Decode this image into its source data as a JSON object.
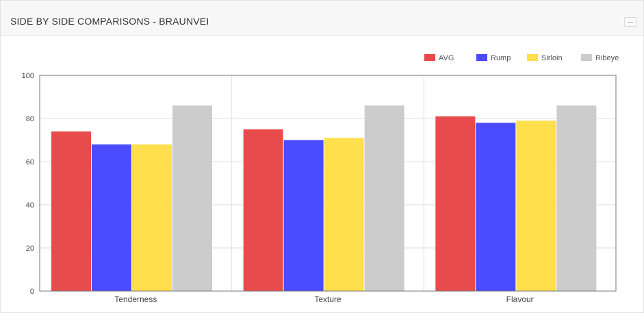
{
  "panel": {
    "title": "SIDE BY SIDE COMPARISONS - BRAUNVEI",
    "collapse_icon": "minus-icon"
  },
  "colors": {
    "AVG": "#e84b4b",
    "Rump": "#4b4bff",
    "Sirloin": "#ffdf4b",
    "Ribeye": "#cccccc"
  },
  "chart_data": {
    "type": "bar",
    "categories": [
      "Tenderness",
      "Texture",
      "Flavour"
    ],
    "series": [
      {
        "name": "AVG",
        "values": [
          74,
          75,
          81
        ]
      },
      {
        "name": "Rump",
        "values": [
          68,
          70,
          78
        ]
      },
      {
        "name": "Sirloin",
        "values": [
          68,
          71,
          79
        ]
      },
      {
        "name": "Ribeye",
        "values": [
          86,
          86,
          86
        ]
      }
    ],
    "ylim": [
      0,
      100
    ],
    "yticks": [
      0,
      20,
      40,
      60,
      80,
      100
    ],
    "grid": true,
    "legend": "top-right"
  }
}
